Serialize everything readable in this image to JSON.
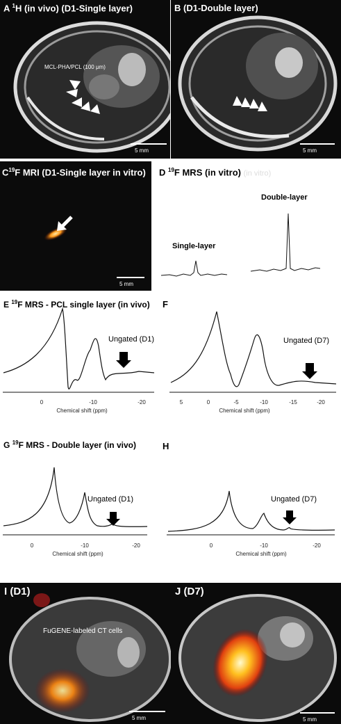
{
  "panels": {
    "A": {
      "letter": "A",
      "title_pre": "1",
      "title_post": "H (in vivo) (D1-Single layer)",
      "annotation": "MCL-PHA/PCL (100 μm)",
      "scale": "5 mm"
    },
    "B": {
      "letter": "B",
      "title": "(D1-Double layer)",
      "scale": "5 mm"
    },
    "C": {
      "letter": "C",
      "title_sup": "19",
      "title_post": "F MRI (D1-Single layer in vitro)",
      "scale": "5 mm"
    },
    "D": {
      "letter": "D",
      "title_sup": "19",
      "title_post": "F MRS (in vitro)",
      "ghost": "(in vitro)",
      "single": "Single-layer",
      "double": "Double-layer"
    },
    "E": {
      "letter": "E",
      "title_sup": "19",
      "title_post": "F MRS - PCL single layer (in vivo)",
      "note": "Ungated (D1)",
      "xlabel": "Chemical shift (ppm)",
      "ticks": [
        "0",
        "-10",
        "-20"
      ]
    },
    "F": {
      "letter": "F",
      "note": "Ungated (D7)",
      "xlabel": "Chemical shift (ppm)",
      "ticks": [
        "5",
        "0",
        "-5",
        "-10",
        "-15",
        "-20"
      ]
    },
    "G": {
      "letter": "G",
      "title_sup": "19",
      "title_post": "F MRS - Double layer (in vivo)",
      "note": "Ungated (D1)",
      "xlabel": "Chemical shift (ppm)",
      "ticks": [
        "0",
        "-10",
        "-20"
      ]
    },
    "H": {
      "letter": "H",
      "note": "Ungated (D7)",
      "xlabel": "Chemical shift (ppm)",
      "ticks": [
        "0",
        "-10",
        "-20"
      ]
    },
    "I": {
      "letter": "I (D1)",
      "annotation": "FuGENE-labeled CT cells",
      "scale": "5 mm"
    },
    "J": {
      "letter": "J (D7)",
      "scale": "5 mm"
    }
  },
  "colors": {
    "mri_bg": "#0b0b0b",
    "hotspot": "#ff9a1a",
    "arrow": "#ffffff",
    "spectrum": "#111111"
  }
}
